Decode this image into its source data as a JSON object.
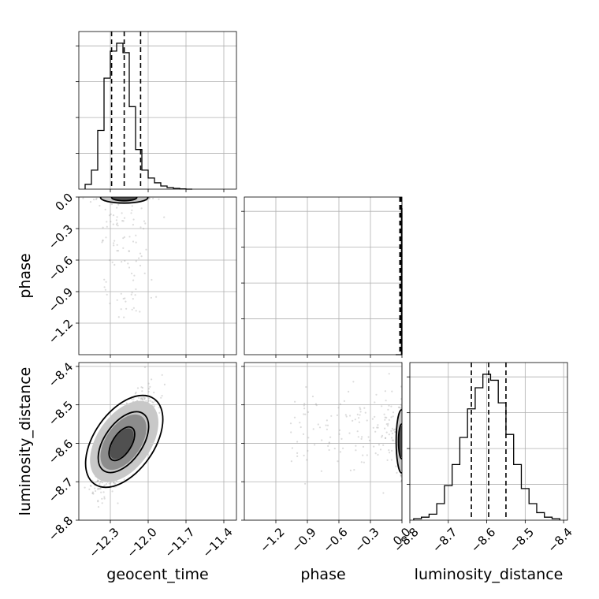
{
  "chart_data": {
    "type": "corner",
    "parameters": [
      "geocent_time",
      "phase",
      "luminosity_distance"
    ],
    "axis_labels": {
      "geocent_time": "geocent_time",
      "phase": "phase",
      "luminosity_distance": "luminosity_distance"
    },
    "ranges": {
      "geocent_time": [
        -12.55,
        -11.3
      ],
      "phase": [
        -1.5,
        0.0
      ],
      "luminosity_distance": [
        -8.8,
        -8.39
      ]
    },
    "ticks": {
      "geocent_time": [
        -12.3,
        -12.0,
        -11.7,
        -11.4
      ],
      "phase": [
        -1.2,
        -0.9,
        -0.6,
        -0.3,
        0.0
      ],
      "luminosity_distance": [
        -8.8,
        -8.7,
        -8.6,
        -8.5,
        -8.4
      ]
    },
    "tick_labels": {
      "geocent_time": [
        "−12.3",
        "−12.0",
        "−11.7",
        "−11.4"
      ],
      "phase": [
        "−1.2",
        "−0.9",
        "−0.6",
        "−0.3",
        "0.0"
      ],
      "luminosity_distance": [
        "−8.8",
        "−8.7",
        "−8.6",
        "−8.5",
        "−8.4"
      ]
    },
    "quantiles": {
      "geocent_time": [
        -12.29,
        -12.19,
        -12.06
      ],
      "phase": [
        -0.02,
        -0.01,
        -0.005
      ],
      "luminosity_distance": [
        -8.64,
        -8.595,
        -8.55
      ]
    },
    "histograms": {
      "geocent_time": {
        "edges": [
          -12.5,
          -12.45,
          -12.4,
          -12.35,
          -12.3,
          -12.25,
          -12.2,
          -12.15,
          -12.1,
          -12.05,
          -12.0,
          -11.95,
          -11.9,
          -11.85,
          -11.8,
          -11.75,
          -11.7,
          -11.65
        ],
        "counts": [
          3,
          12,
          37,
          70,
          87,
          92,
          86,
          52,
          25,
          12,
          7,
          4,
          2,
          1,
          0.5,
          0.2,
          0
        ]
      },
      "phase": {
        "edges": [
          -0.06,
          -0.005,
          0.0
        ],
        "counts": [
          0,
          88
        ]
      },
      "luminosity_distance": {
        "edges": [
          -8.79,
          -8.77,
          -8.75,
          -8.73,
          -8.71,
          -8.69,
          -8.67,
          -8.65,
          -8.63,
          -8.61,
          -8.59,
          -8.57,
          -8.55,
          -8.53,
          -8.51,
          -8.49,
          -8.47,
          -8.45,
          -8.43,
          -8.41
        ],
        "counts": [
          1,
          2,
          4,
          11,
          23,
          37,
          55,
          74,
          88,
          97,
          93,
          78,
          57,
          37,
          21,
          11,
          5,
          2,
          1
        ]
      }
    },
    "grid": true
  }
}
